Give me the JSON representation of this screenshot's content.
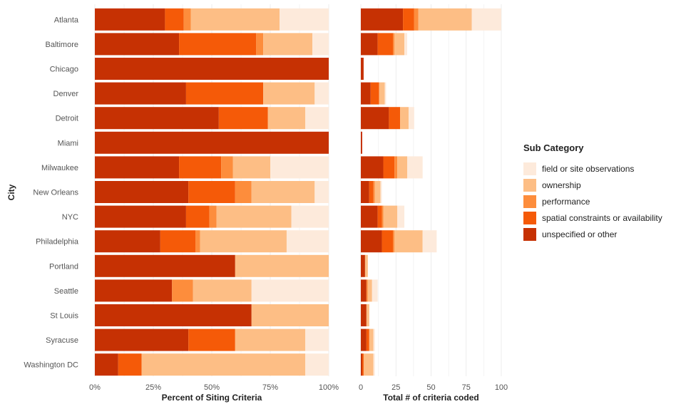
{
  "chart_data": [
    {
      "type": "bar",
      "orientation": "horizontal",
      "stacked": true,
      "xlabel": "Percent of Siting Criteria",
      "ylabel": "City",
      "xlim": [
        0,
        100
      ],
      "xticks": [
        "0%",
        "25%",
        "50%",
        "75%",
        "100%"
      ],
      "categories": [
        "Atlanta",
        "Baltimore",
        "Chicago",
        "Denver",
        "Detroit",
        "Miami",
        "Milwaukee",
        "New Orleans",
        "NYC",
        "Philadelphia",
        "Portland",
        "Seattle",
        "St Louis",
        "Syracuse",
        "Washington DC"
      ],
      "series": [
        {
          "name": "unspecified or other",
          "values": [
            30,
            36,
            100,
            39,
            53,
            100,
            36,
            40,
            39,
            28,
            60,
            33,
            67,
            40,
            10
          ]
        },
        {
          "name": "spatial constraints or availability",
          "values": [
            8,
            33,
            0,
            33,
            21,
            0,
            18,
            20,
            10,
            15,
            0,
            0,
            0,
            20,
            10
          ]
        },
        {
          "name": "performance",
          "values": [
            3,
            3,
            0,
            0,
            0,
            0,
            5,
            7,
            3,
            2,
            0,
            9,
            0,
            0,
            0
          ]
        },
        {
          "name": "ownership",
          "values": [
            38,
            21,
            0,
            22,
            16,
            0,
            16,
            27,
            32,
            37,
            40,
            25,
            33,
            30,
            70
          ]
        },
        {
          "name": "field or site observations",
          "values": [
            21,
            7,
            0,
            6,
            10,
            0,
            25,
            6,
            16,
            18,
            0,
            33,
            0,
            10,
            10
          ]
        }
      ],
      "grid": true
    },
    {
      "type": "bar",
      "orientation": "horizontal",
      "stacked": true,
      "xlabel": "Total # of criteria coded",
      "xlim": [
        0,
        100
      ],
      "xticks": [
        "0",
        "25",
        "50",
        "75",
        "100"
      ],
      "categories": [
        "Atlanta",
        "Baltimore",
        "Chicago",
        "Denver",
        "Detroit",
        "Miami",
        "Milwaukee",
        "New Orleans",
        "NYC",
        "Philadelphia",
        "Portland",
        "Seattle",
        "St Louis",
        "Syracuse",
        "Washington DC"
      ],
      "series": [
        {
          "name": "unspecified or other",
          "values": [
            30,
            12,
            2,
            7,
            20,
            1,
            16,
            6,
            12,
            15,
            3,
            4,
            4,
            4,
            1
          ]
        },
        {
          "name": "spatial constraints or availability",
          "values": [
            8,
            11,
            0,
            6,
            8,
            0,
            8,
            3,
            3,
            8,
            0,
            0,
            0,
            2,
            1
          ]
        },
        {
          "name": "performance",
          "values": [
            3,
            1,
            0,
            0,
            0,
            0,
            2,
            1,
            1,
            1,
            0,
            1,
            0,
            0,
            0
          ]
        },
        {
          "name": "ownership",
          "values": [
            38,
            7,
            0,
            4,
            6,
            0,
            7,
            4,
            10,
            20,
            2,
            3,
            2,
            3,
            7
          ]
        },
        {
          "name": "field or site observations",
          "values": [
            21,
            2,
            0,
            1,
            4,
            0,
            11,
            1,
            5,
            10,
            0,
            4,
            0,
            1,
            1
          ]
        }
      ],
      "grid": true
    }
  ],
  "legend": {
    "title": "Sub Category",
    "placement": "right",
    "items": [
      {
        "label": "field or site observations",
        "color": "#fdeadb"
      },
      {
        "label": "ownership",
        "color": "#fdbe85"
      },
      {
        "label": "performance",
        "color": "#fd8d3c"
      },
      {
        "label": "spatial constraints or availability",
        "color": "#f55a08"
      },
      {
        "label": "unspecified or other",
        "color": "#c63103"
      }
    ]
  },
  "colors": {
    "unspecified or other": "#c63103",
    "spatial constraints or availability": "#f55a08",
    "performance": "#fd8d3c",
    "ownership": "#fdbe85",
    "field or site observations": "#fdeadb",
    "gridline": "#e8e8e8"
  }
}
